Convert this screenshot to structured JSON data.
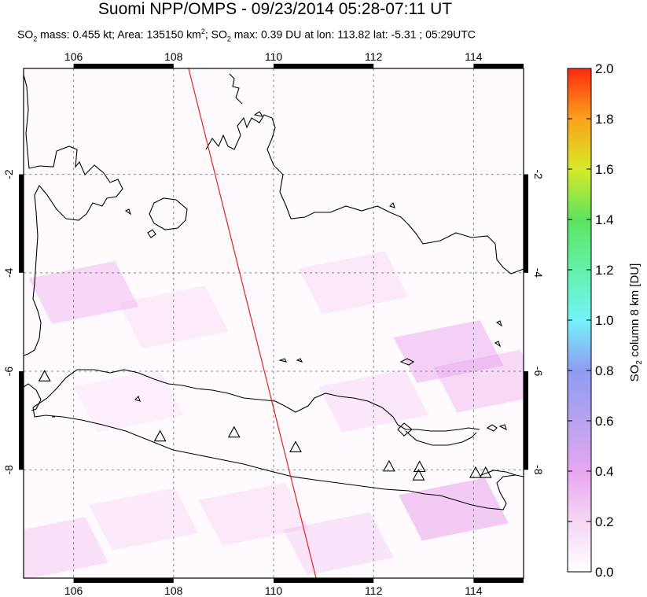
{
  "title": "Suomi NPP/OMPS - 09/23/2014 05:28-07:11 UT",
  "subtitle": {
    "p1": "SO",
    "p1sub": "2",
    "p2": " mass: 0.455 kt; Area: 135150 km",
    "p2sup": "2",
    "p3": "; SO",
    "p3sub": "2",
    "p4": " max: 0.39 DU at lon: 113.82 lat: -5.31 ; 05:29UTC"
  },
  "colorbar": {
    "label_main": "SO",
    "label_sub": "2",
    "label_rest": " column 8 km [DU]",
    "ticks": [
      "0.0",
      "0.2",
      "0.4",
      "0.6",
      "0.8",
      "1.0",
      "1.2",
      "1.4",
      "1.6",
      "1.8",
      "2.0"
    ],
    "range": [
      0,
      2.0
    ]
  },
  "chart_data": {
    "type": "heatmap",
    "title": "Suomi NPP/OMPS - 09/23/2014 05:28-07:11 UT",
    "xlim": [
      105,
      115
    ],
    "ylim": [
      -10.2,
      0.15
    ],
    "x_ticks": [
      106,
      108,
      110,
      112,
      114
    ],
    "y_ticks": [
      -2,
      -4,
      -6,
      -8
    ],
    "x_tick_labels": [
      "106",
      "108",
      "110",
      "112",
      "114"
    ],
    "y_tick_labels": [
      "-2",
      "-4",
      "-6",
      "-8"
    ],
    "grid": true,
    "max_point": {
      "lon": 113.82,
      "lat": -5.31,
      "value": 0.39
    },
    "orbit_track": [
      [
        108.3,
        0.15
      ],
      [
        110.85,
        -10.2
      ]
    ],
    "volcanoes": [
      [
        105.42,
        -6.1
      ],
      [
        107.73,
        -7.32
      ],
      [
        109.21,
        -7.24
      ],
      [
        110.44,
        -7.54
      ],
      [
        112.31,
        -7.93
      ],
      [
        112.92,
        -7.94
      ],
      [
        112.9,
        -8.11
      ],
      [
        114.04,
        -8.06
      ],
      [
        114.24,
        -8.06
      ]
    ],
    "patches": [
      {
        "lon": 106.2,
        "lat": -4.4,
        "value": 0.22
      },
      {
        "lon": 108.0,
        "lat": -4.9,
        "value": 0.08
      },
      {
        "lon": 107.1,
        "lat": -6.6,
        "value": 0.06
      },
      {
        "lon": 111.6,
        "lat": -4.2,
        "value": 0.1
      },
      {
        "lon": 113.5,
        "lat": -5.6,
        "value": 0.26
      },
      {
        "lon": 114.3,
        "lat": -6.2,
        "value": 0.2
      },
      {
        "lon": 113.6,
        "lat": -8.8,
        "value": 0.3
      },
      {
        "lon": 112.0,
        "lat": -6.6,
        "value": 0.12
      },
      {
        "lon": 109.6,
        "lat": -8.9,
        "value": 0.1
      },
      {
        "lon": 105.6,
        "lat": -9.6,
        "value": 0.16
      },
      {
        "lon": 107.4,
        "lat": -9.0,
        "value": 0.09
      },
      {
        "lon": 111.3,
        "lat": -9.5,
        "value": 0.14
      }
    ]
  }
}
